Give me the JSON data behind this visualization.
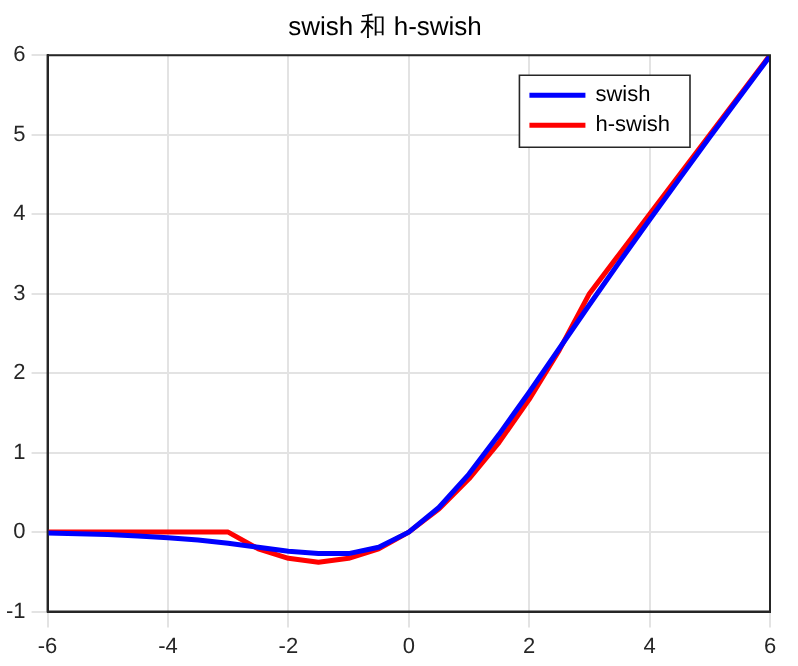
{
  "chart_data": {
    "type": "line",
    "title": "swish 和 h-swish",
    "x": [
      -6,
      -5.5,
      -5,
      -4.5,
      -4,
      -3.5,
      -3,
      -2.5,
      -2,
      -1.5,
      -1,
      -0.5,
      0,
      0.5,
      1,
      1.5,
      2,
      2.5,
      3,
      3.5,
      4,
      4.5,
      5,
      5.5,
      6
    ],
    "series": [
      {
        "name": "swish",
        "color": "#0000ff",
        "values": [
          -0.01,
          -0.02,
          -0.03,
          -0.05,
          -0.07,
          -0.1,
          -0.14,
          -0.19,
          -0.24,
          -0.27,
          -0.27,
          -0.19,
          0,
          0.31,
          0.73,
          1.23,
          1.76,
          2.31,
          2.86,
          3.4,
          3.93,
          4.45,
          4.97,
          5.48,
          5.99
        ]
      },
      {
        "name": "h-swish",
        "color": "#ff0000",
        "values": [
          0,
          0,
          0,
          0,
          0,
          0,
          0,
          -0.21,
          -0.33,
          -0.38,
          -0.33,
          -0.21,
          0,
          0.29,
          0.67,
          1.13,
          1.67,
          2.29,
          3,
          3.5,
          4,
          4.5,
          5,
          5.5,
          6
        ]
      }
    ],
    "xlim": [
      -6,
      6
    ],
    "xticks": [
      -6,
      -4,
      -2,
      0,
      2,
      4,
      6
    ],
    "ylim": [
      -1,
      6
    ],
    "yticks": [
      -1,
      0,
      1,
      2,
      3,
      4,
      5,
      6
    ],
    "grid": true,
    "legend": "top right",
    "marker": "none",
    "line_style": "solid"
  }
}
